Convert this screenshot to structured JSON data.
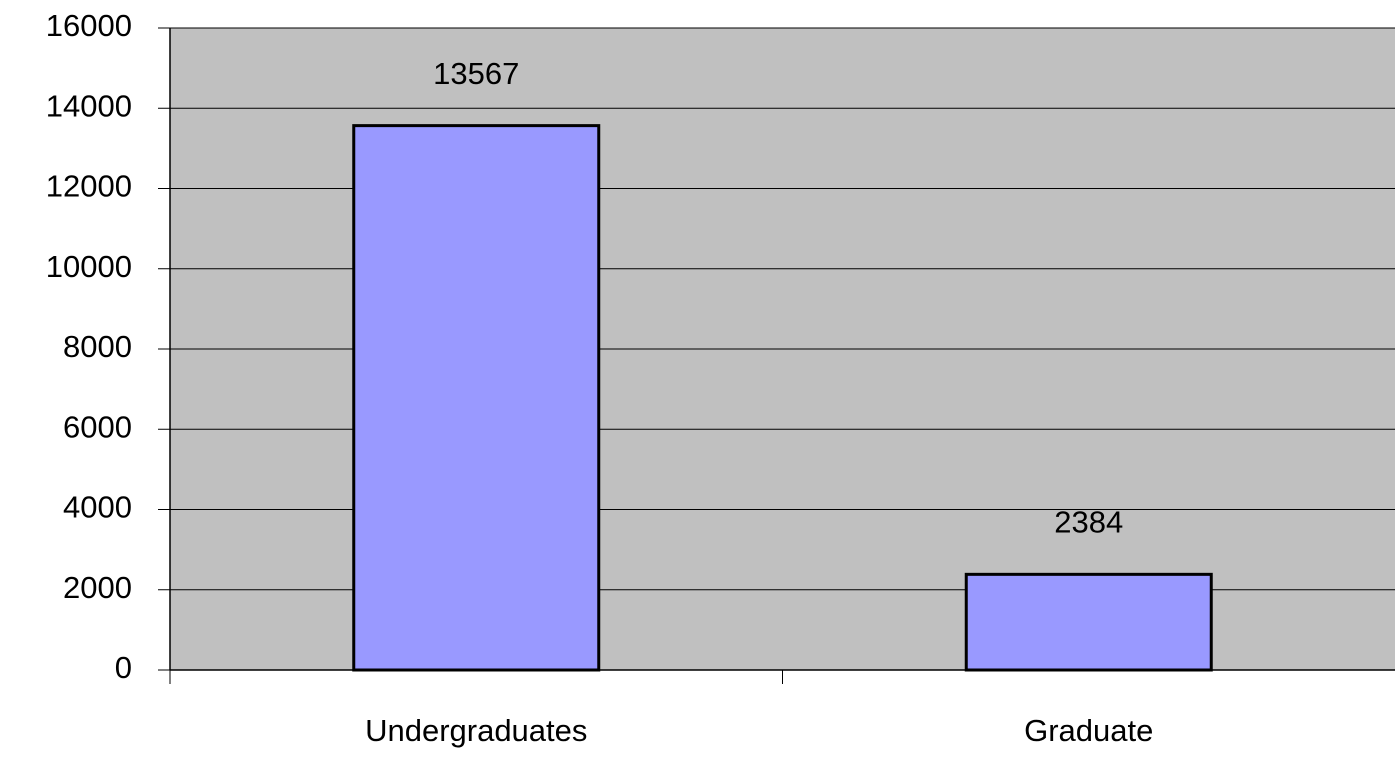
{
  "chart_data": {
    "type": "bar",
    "categories": [
      "Undergraduates",
      "Graduate"
    ],
    "values": [
      13567,
      2384
    ],
    "color": "#9999ff",
    "plot_background": "#c0c0c0",
    "ylim": [
      0,
      16000
    ],
    "yticks": [
      0,
      2000,
      4000,
      6000,
      8000,
      10000,
      12000,
      14000,
      16000
    ],
    "grid": true
  }
}
